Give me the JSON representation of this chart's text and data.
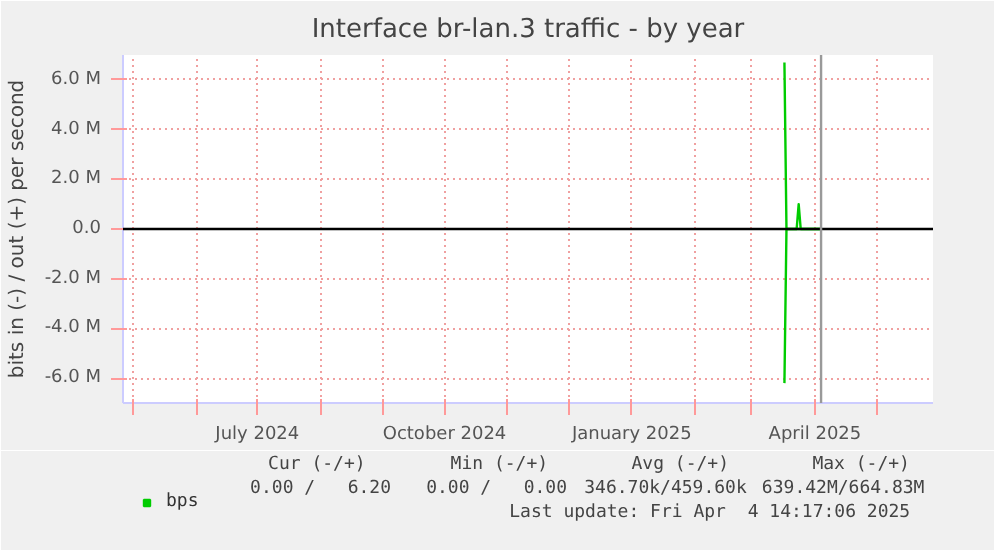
{
  "chart_data": {
    "type": "line",
    "title": "Interface br-lan.3 traffic - by year",
    "ylabel": "bits in (-) / out (+) per second",
    "x": [
      "2025-03-17",
      "2025-03-18",
      "2025-03-23",
      "2025-03-24",
      "2025-03-25",
      "2025-04-04"
    ],
    "series": [
      {
        "name": "bps",
        "color": "#00cc00",
        "values": [
          6700000,
          0,
          0,
          1000000,
          0,
          0
        ]
      },
      {
        "color": "#00cc00",
        "values": [
          -6200000,
          0,
          0,
          0,
          0,
          0
        ]
      }
    ],
    "xlim": [
      "2024-04-26",
      "2025-05-29"
    ],
    "xticks": [
      {
        "value": "2024-05-01",
        "label": null
      },
      {
        "value": "2024-06-01",
        "label": null
      },
      {
        "value": "2024-07-01",
        "label": "July 2024"
      },
      {
        "value": "2024-08-01",
        "label": null
      },
      {
        "value": "2024-09-01",
        "label": null
      },
      {
        "value": "2024-10-01",
        "label": "October 2024"
      },
      {
        "value": "2024-11-01",
        "label": null
      },
      {
        "value": "2024-12-01",
        "label": null
      },
      {
        "value": "2025-01-01",
        "label": "January 2025"
      },
      {
        "value": "2025-02-01",
        "label": null
      },
      {
        "value": "2025-03-01",
        "label": null
      },
      {
        "value": "2025-04-01",
        "label": "April 2025"
      },
      {
        "value": "2025-05-01",
        "label": null
      }
    ],
    "ylim": [
      -7000000,
      7000000
    ],
    "yticks": [
      {
        "value": -6000000,
        "label": "-6.0 M"
      },
      {
        "value": -4000000,
        "label": "-4.0 M"
      },
      {
        "value": -2000000,
        "label": "-2.0 M"
      },
      {
        "value": 0,
        "label": "0.0"
      },
      {
        "value": 2000000,
        "label": "2.0 M"
      },
      {
        "value": 4000000,
        "label": "4.0 M"
      },
      {
        "value": 6000000,
        "label": "6.0 M"
      }
    ],
    "ref_lines": [
      {
        "axis": "y",
        "value": 0,
        "label": null,
        "color": "#000000"
      },
      {
        "axis": "x",
        "value": "2025-04-04",
        "label": null,
        "color": "#999999"
      }
    ],
    "grid": true,
    "legend": "bottom left",
    "marker": "none",
    "line_style": "solid",
    "annotations": [
      "Cur (-/+)",
      "Min (-/+)",
      "Avg (-/+)",
      "Max (-/+)",
      "0.00 /   6.20",
      "0.00 /   0.00",
      "346.70k/459.60k",
      "639.42M/664.83M",
      "Last update: Fri Apr  4 14:17:06 2025"
    ]
  }
}
